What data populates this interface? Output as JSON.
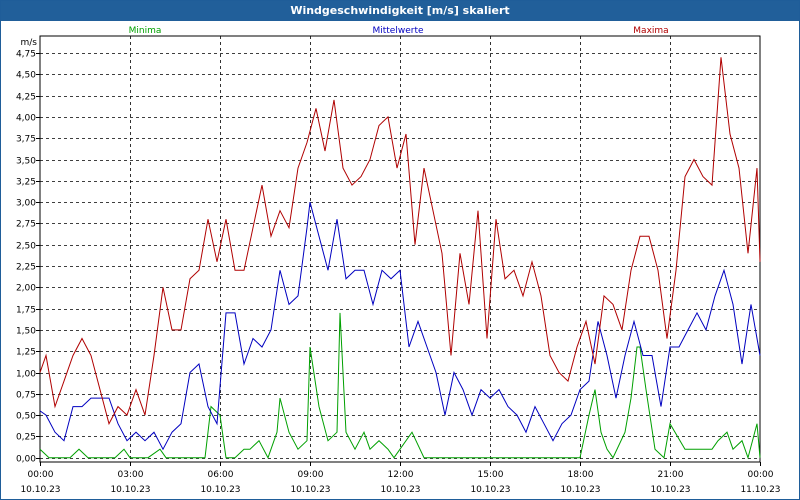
{
  "chart_data": {
    "type": "line",
    "title": "Windgeschwindigkeit [m/s] skaliert",
    "ylabel": "m/s",
    "ylim": [
      -0.05,
      4.95
    ],
    "yticks": [
      0,
      0.25,
      0.5,
      0.75,
      1.0,
      1.25,
      1.5,
      1.75,
      2.0,
      2.25,
      2.5,
      2.75,
      3.0,
      3.25,
      3.5,
      3.75,
      4.0,
      4.25,
      4.5,
      4.75
    ],
    "ytick_labels": [
      "0,00",
      "0,25",
      "0,50",
      "0,75",
      "1,00",
      "1,25",
      "1,50",
      "1,75",
      "2,00",
      "2,25",
      "2,50",
      "2,75",
      "3,00",
      "3,25",
      "3,50",
      "3,75",
      "4,00",
      "4,25",
      "4,50",
      "4,75"
    ],
    "xlim": [
      0,
      24
    ],
    "x_ticks": [
      {
        "time": "00:00",
        "date": "10.10.23"
      },
      {
        "time": "03:00",
        "date": "10.10.23"
      },
      {
        "time": "06:00",
        "date": "10.10.23"
      },
      {
        "time": "09:00",
        "date": "10.10.23"
      },
      {
        "time": "12:00",
        "date": "10.10.23"
      },
      {
        "time": "15:00",
        "date": "10.10.23"
      },
      {
        "time": "18:00",
        "date": "10.10.23"
      },
      {
        "time": "21:00",
        "date": "10.10.23"
      },
      {
        "time": "00:00",
        "date": "11.10.23"
      }
    ],
    "grid": true,
    "legend_position": "top",
    "series": [
      {
        "name": "Minima",
        "color": "#00a000",
        "x": [
          0,
          0.3,
          0.7,
          1.0,
          1.3,
          1.6,
          2.0,
          2.5,
          2.8,
          3.0,
          3.3,
          3.6,
          4.0,
          4.2,
          4.5,
          5.0,
          5.5,
          5.7,
          6.0,
          6.2,
          6.5,
          6.8,
          7.0,
          7.3,
          7.6,
          7.9,
          8.0,
          8.3,
          8.6,
          8.9,
          9.0,
          9.3,
          9.6,
          9.9,
          10.0,
          10.2,
          10.5,
          10.8,
          11.0,
          11.3,
          11.6,
          11.8,
          12.0,
          12.4,
          12.8,
          13.0,
          13.5,
          14.0,
          14.5,
          15.0,
          15.5,
          16.0,
          16.5,
          17.0,
          17.5,
          18.0,
          18.3,
          18.5,
          18.7,
          18.9,
          19.1,
          19.5,
          19.7,
          19.9,
          20.0,
          20.2,
          20.5,
          20.8,
          21.0,
          21.5,
          22.0,
          22.4,
          22.6,
          22.9,
          23.1,
          23.4,
          23.6,
          23.9,
          24.0
        ],
        "values": [
          0.1,
          0.0,
          0.0,
          0.0,
          0.1,
          0.0,
          0.0,
          0.0,
          0.1,
          0.0,
          0.0,
          0.0,
          0.1,
          0.0,
          0.0,
          0.0,
          0.0,
          0.6,
          0.5,
          0.0,
          0.0,
          0.1,
          0.1,
          0.2,
          0.0,
          0.3,
          0.7,
          0.3,
          0.1,
          0.2,
          1.3,
          0.6,
          0.2,
          0.3,
          1.7,
          0.3,
          0.1,
          0.3,
          0.1,
          0.2,
          0.1,
          0.0,
          0.1,
          0.3,
          0.0,
          0.0,
          0.0,
          0.0,
          0.0,
          0.0,
          0.0,
          0.0,
          0.0,
          0.0,
          0.0,
          0.0,
          0.5,
          0.8,
          0.3,
          0.1,
          0.0,
          0.3,
          0.7,
          1.3,
          1.3,
          0.8,
          0.1,
          0.0,
          0.4,
          0.1,
          0.1,
          0.1,
          0.2,
          0.3,
          0.1,
          0.2,
          0.0,
          0.4,
          0.0
        ]
      },
      {
        "name": "Mittelwerte",
        "color": "#0000c0",
        "x": [
          0,
          0.2,
          0.5,
          0.8,
          1.1,
          1.4,
          1.7,
          2.0,
          2.3,
          2.6,
          2.9,
          3.2,
          3.5,
          3.8,
          4.1,
          4.4,
          4.7,
          5.0,
          5.3,
          5.6,
          5.9,
          6.2,
          6.5,
          6.8,
          7.1,
          7.4,
          7.7,
          8.0,
          8.3,
          8.6,
          8.9,
          9.0,
          9.3,
          9.6,
          9.9,
          10.2,
          10.5,
          10.8,
          11.1,
          11.4,
          11.7,
          12.0,
          12.3,
          12.6,
          12.9,
          13.2,
          13.5,
          13.8,
          14.1,
          14.4,
          14.7,
          15.0,
          15.3,
          15.6,
          15.9,
          16.2,
          16.5,
          16.8,
          17.1,
          17.4,
          17.7,
          18.0,
          18.3,
          18.6,
          18.9,
          19.2,
          19.5,
          19.8,
          20.1,
          20.4,
          20.7,
          21.0,
          21.3,
          21.6,
          21.9,
          22.2,
          22.5,
          22.8,
          23.1,
          23.4,
          23.7,
          24.0
        ],
        "values": [
          0.55,
          0.5,
          0.3,
          0.2,
          0.6,
          0.6,
          0.7,
          0.7,
          0.7,
          0.4,
          0.2,
          0.3,
          0.2,
          0.3,
          0.1,
          0.3,
          0.4,
          1.0,
          1.1,
          0.6,
          0.4,
          1.7,
          1.7,
          1.1,
          1.4,
          1.3,
          1.5,
          2.2,
          1.8,
          1.9,
          2.7,
          3.0,
          2.6,
          2.2,
          2.8,
          2.1,
          2.2,
          2.2,
          1.8,
          2.2,
          2.1,
          2.2,
          1.3,
          1.6,
          1.3,
          1.0,
          0.5,
          1.0,
          0.8,
          0.5,
          0.8,
          0.7,
          0.8,
          0.6,
          0.5,
          0.3,
          0.6,
          0.4,
          0.2,
          0.4,
          0.5,
          0.8,
          0.9,
          1.6,
          1.2,
          0.7,
          1.2,
          1.6,
          1.2,
          1.2,
          0.6,
          1.3,
          1.3,
          1.5,
          1.7,
          1.5,
          1.9,
          2.2,
          1.8,
          1.1,
          1.8,
          1.2
        ]
      },
      {
        "name": "Maxima",
        "color": "#b00000",
        "x": [
          0,
          0.2,
          0.5,
          0.8,
          1.1,
          1.4,
          1.7,
          2.0,
          2.3,
          2.6,
          2.9,
          3.2,
          3.5,
          3.8,
          4.1,
          4.4,
          4.7,
          5.0,
          5.3,
          5.6,
          5.9,
          6.2,
          6.5,
          6.8,
          7.1,
          7.4,
          7.7,
          8.0,
          8.3,
          8.6,
          8.9,
          9.2,
          9.5,
          9.8,
          10.1,
          10.4,
          10.7,
          11.0,
          11.3,
          11.6,
          11.9,
          12.2,
          12.5,
          12.8,
          13.1,
          13.4,
          13.7,
          14.0,
          14.3,
          14.6,
          14.9,
          15.2,
          15.5,
          15.8,
          16.1,
          16.4,
          16.7,
          17.0,
          17.3,
          17.6,
          17.9,
          18.2,
          18.5,
          18.8,
          19.1,
          19.4,
          19.7,
          20.0,
          20.3,
          20.6,
          20.9,
          21.2,
          21.5,
          21.8,
          22.1,
          22.4,
          22.7,
          23.0,
          23.3,
          23.6,
          23.9,
          24.0
        ],
        "values": [
          1.0,
          1.2,
          0.6,
          0.9,
          1.2,
          1.4,
          1.2,
          0.8,
          0.4,
          0.6,
          0.5,
          0.8,
          0.5,
          1.2,
          2.0,
          1.5,
          1.5,
          2.1,
          2.2,
          2.8,
          2.3,
          2.8,
          2.2,
          2.2,
          2.7,
          3.2,
          2.6,
          2.9,
          2.7,
          3.4,
          3.7,
          4.1,
          3.6,
          4.2,
          3.4,
          3.2,
          3.3,
          3.5,
          3.9,
          4.0,
          3.4,
          3.8,
          2.5,
          3.4,
          2.9,
          2.4,
          1.2,
          2.4,
          1.8,
          2.9,
          1.4,
          2.8,
          2.1,
          2.2,
          1.9,
          2.3,
          1.9,
          1.2,
          1.0,
          0.9,
          1.3,
          1.6,
          1.1,
          1.9,
          1.8,
          1.5,
          2.2,
          2.6,
          2.6,
          2.2,
          1.4,
          2.2,
          3.3,
          3.5,
          3.3,
          3.2,
          4.7,
          3.8,
          3.4,
          2.4,
          3.4,
          2.3
        ]
      }
    ]
  }
}
